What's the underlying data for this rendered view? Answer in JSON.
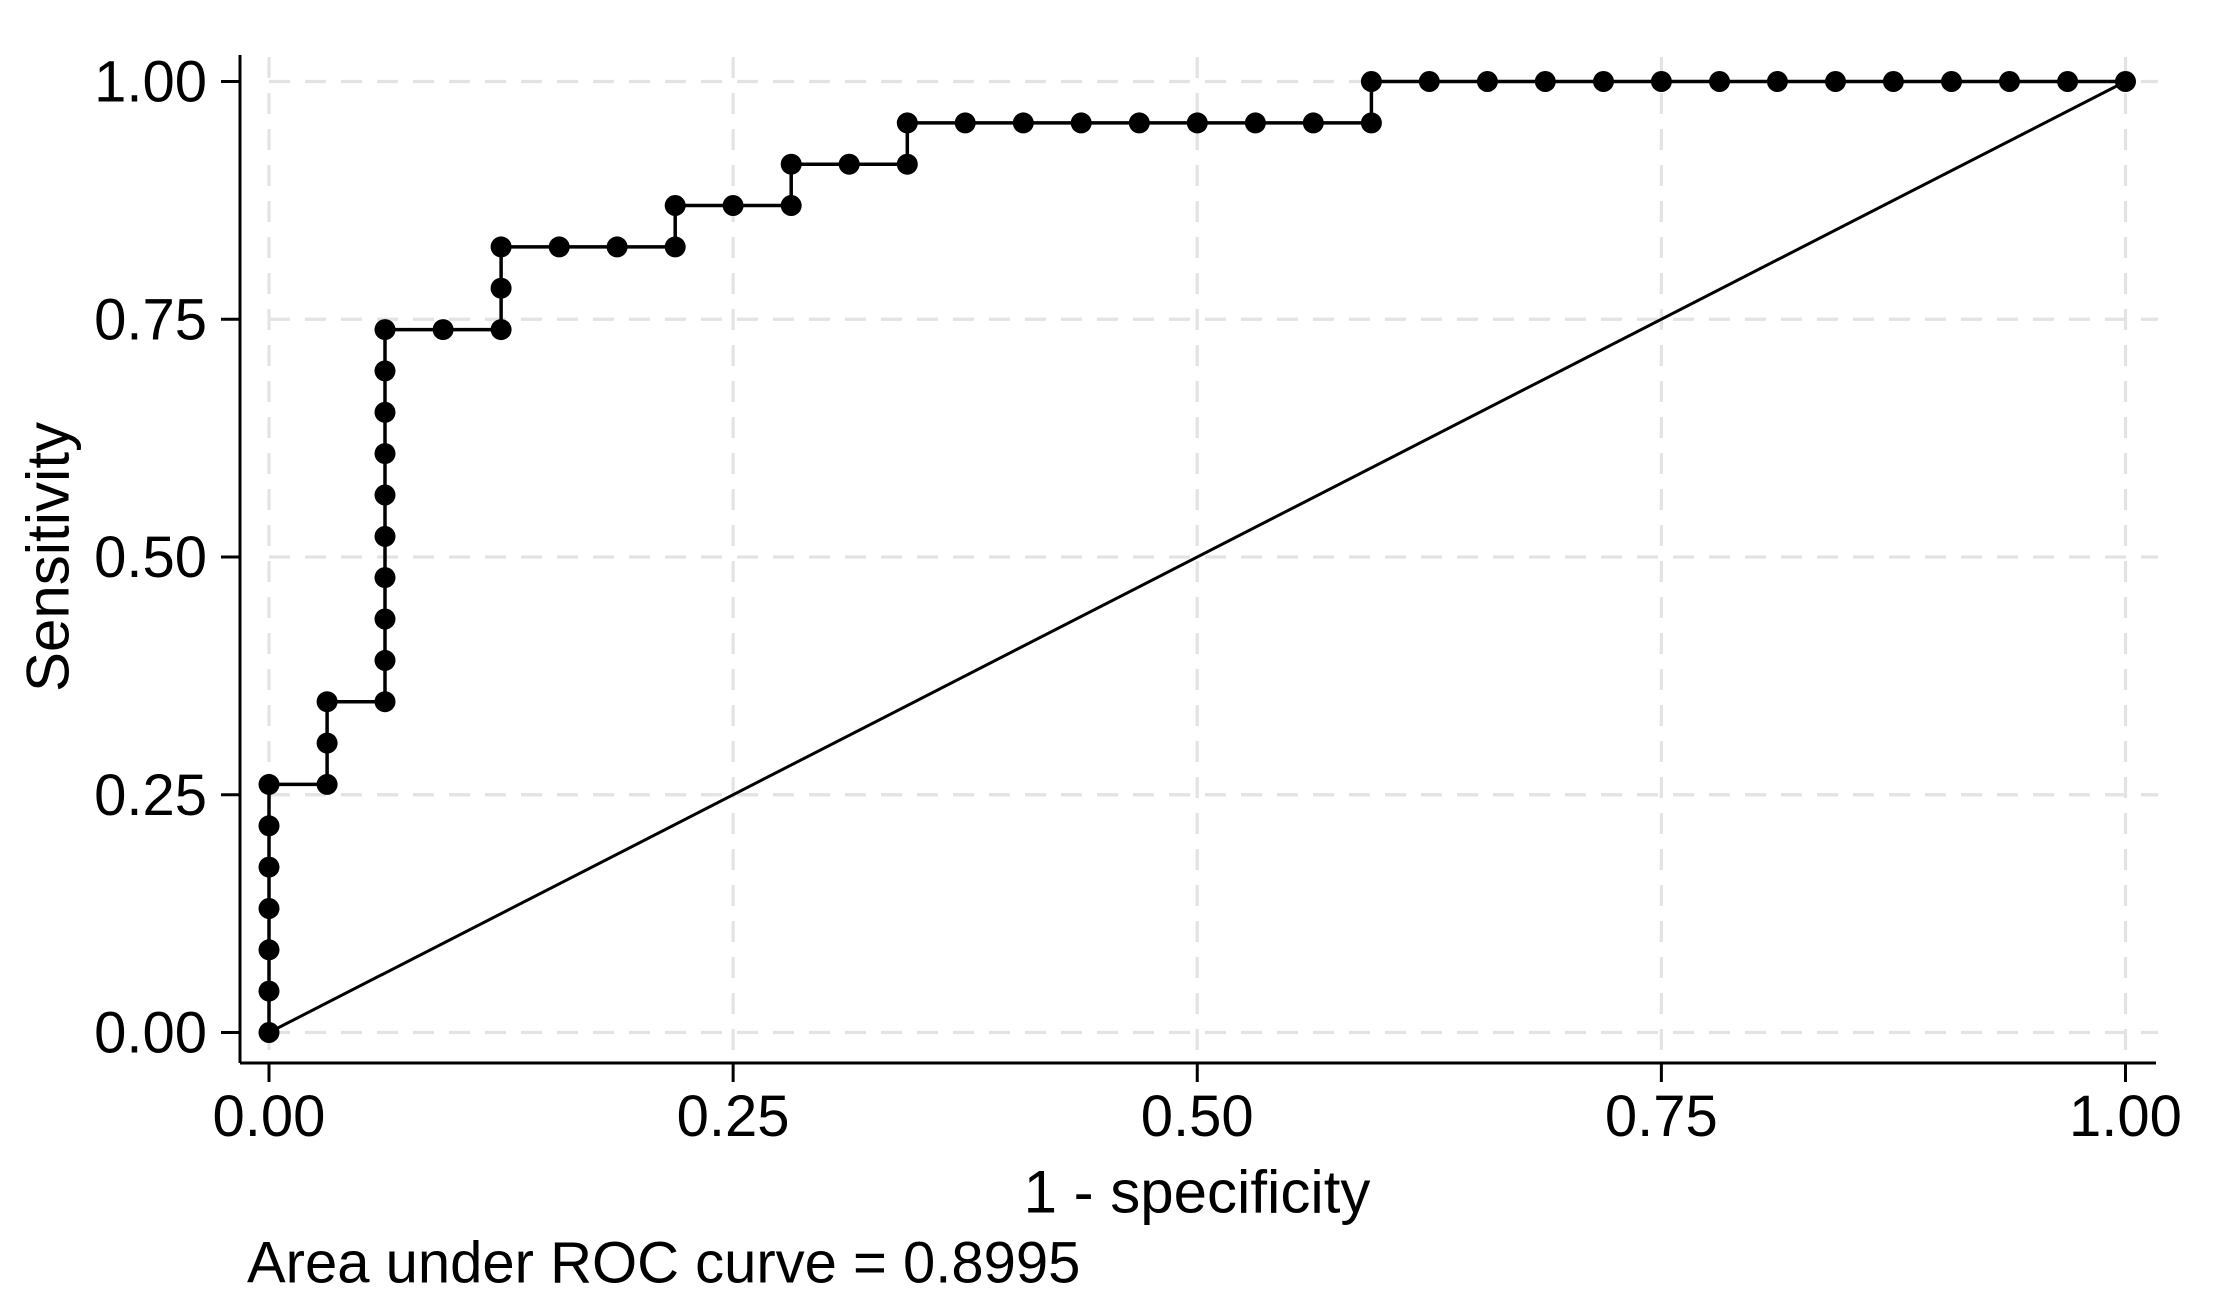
{
  "figure": {
    "background": "#ffffff"
  },
  "chart_data": {
    "type": "line",
    "subtype": "roc-step-function",
    "title": "",
    "xlabel": "1 - specificity",
    "ylabel": "Sensitivity",
    "annotation": "Area under ROC curve = 0.8995",
    "auc_value": 0.8995,
    "xlim": [
      0,
      1
    ],
    "ylim": [
      0,
      1
    ],
    "x_tick_values": [
      0,
      0.25,
      0.5,
      0.75,
      1
    ],
    "x_tick_labels": [
      "0.00",
      "0.25",
      "0.50",
      "0.75",
      "1.00"
    ],
    "y_tick_values": [
      0,
      0.25,
      0.5,
      0.75,
      1
    ],
    "y_tick_labels": [
      "0.00",
      "0.25",
      "0.50",
      "0.75",
      "1.00"
    ],
    "grid": {
      "show": true,
      "style": "dashed",
      "color": "#e3e3e3",
      "at": "all-ticks-both-axes"
    },
    "legend": {
      "show": false
    },
    "colors": {
      "curve": "#000000",
      "marker": "#000000",
      "reference_line": "#000000",
      "axis": "#000000",
      "text": "#000000"
    },
    "series": [
      {
        "name": "ROC curve",
        "style": "step",
        "marker": "circle",
        "points": [
          [
            0,
            0
          ],
          [
            0,
            0.0435
          ],
          [
            0,
            0.087
          ],
          [
            0,
            0.1304
          ],
          [
            0,
            0.1739
          ],
          [
            0,
            0.2174
          ],
          [
            0,
            0.2609
          ],
          [
            0.0313,
            0.2609
          ],
          [
            0.0313,
            0.3043
          ],
          [
            0.0313,
            0.3478
          ],
          [
            0.0625,
            0.3478
          ],
          [
            0.0625,
            0.3913
          ],
          [
            0.0625,
            0.4348
          ],
          [
            0.0625,
            0.4783
          ],
          [
            0.0625,
            0.5217
          ],
          [
            0.0625,
            0.5652
          ],
          [
            0.0625,
            0.6087
          ],
          [
            0.0625,
            0.6522
          ],
          [
            0.0625,
            0.6957
          ],
          [
            0.0625,
            0.7391
          ],
          [
            0.0938,
            0.7391
          ],
          [
            0.125,
            0.7391
          ],
          [
            0.125,
            0.7826
          ],
          [
            0.125,
            0.8261
          ],
          [
            0.1563,
            0.8261
          ],
          [
            0.1875,
            0.8261
          ],
          [
            0.2188,
            0.8261
          ],
          [
            0.2188,
            0.8696
          ],
          [
            0.25,
            0.8696
          ],
          [
            0.2813,
            0.8696
          ],
          [
            0.2813,
            0.913
          ],
          [
            0.3125,
            0.913
          ],
          [
            0.3438,
            0.913
          ],
          [
            0.3438,
            0.9565
          ],
          [
            0.375,
            0.9565
          ],
          [
            0.4063,
            0.9565
          ],
          [
            0.4375,
            0.9565
          ],
          [
            0.4688,
            0.9565
          ],
          [
            0.5,
            0.9565
          ],
          [
            0.5313,
            0.9565
          ],
          [
            0.5625,
            0.9565
          ],
          [
            0.5938,
            0.9565
          ],
          [
            0.5938,
            1
          ],
          [
            0.625,
            1
          ],
          [
            0.6563,
            1
          ],
          [
            0.6875,
            1
          ],
          [
            0.7188,
            1
          ],
          [
            0.75,
            1
          ],
          [
            0.7813,
            1
          ],
          [
            0.8125,
            1
          ],
          [
            0.8438,
            1
          ],
          [
            0.875,
            1
          ],
          [
            0.9063,
            1
          ],
          [
            0.9375,
            1
          ],
          [
            0.9688,
            1
          ],
          [
            1,
            1
          ]
        ]
      },
      {
        "name": "Reference diagonal",
        "style": "straight",
        "marker": "none",
        "points": [
          [
            0,
            0
          ],
          [
            1,
            1
          ]
        ]
      }
    ]
  }
}
